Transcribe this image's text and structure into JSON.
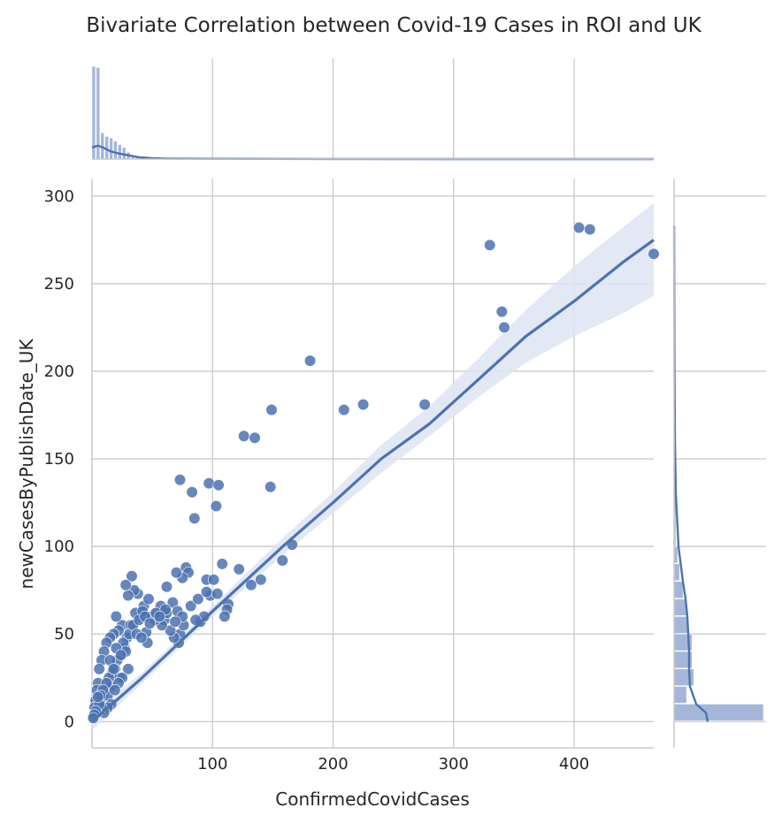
{
  "chart_data": {
    "type": "scatter",
    "title": "Bivariate Correlation between Covid-19 Cases in ROI and UK",
    "xlabel": "ConfirmedCovidCases",
    "ylabel": "newCasesByPublishDate_UK",
    "xlim": [
      0,
      466
    ],
    "ylim": [
      -15,
      310
    ],
    "xticks": [
      "100",
      "200",
      "300",
      "400"
    ],
    "xtick_values": [
      100,
      200,
      300,
      400
    ],
    "yticks": [
      "0",
      "50",
      "100",
      "150",
      "200",
      "250",
      "300"
    ],
    "ytick_values": [
      0,
      50,
      100,
      150,
      200,
      250,
      300
    ],
    "grid": true,
    "point_color": "#4c72b0",
    "band_color": "#dde4f2",
    "hist_color": "#a4b6d9",
    "scatter": {
      "x": [
        466,
        413,
        404,
        330,
        340,
        342,
        181,
        209,
        225,
        276,
        149,
        126,
        135,
        148,
        73,
        83,
        97,
        105,
        103,
        85,
        166,
        158,
        140,
        132,
        122,
        113,
        112,
        110,
        98,
        104,
        95,
        108,
        78,
        80,
        75,
        70,
        90,
        93,
        101,
        86,
        73,
        72,
        68,
        76,
        60,
        65,
        55,
        58,
        50,
        45,
        43,
        40,
        38,
        35,
        33,
        30,
        28,
        25,
        22,
        20,
        18,
        15,
        12,
        10,
        8,
        6,
        5,
        4,
        3,
        2,
        1,
        36,
        32,
        29,
        27,
        24,
        21,
        19,
        17,
        14,
        11,
        9,
        7,
        26,
        31,
        34,
        37,
        42,
        47,
        52,
        57,
        62,
        23,
        16,
        13,
        39,
        44,
        48,
        53,
        28,
        30,
        25,
        22,
        19,
        16,
        13,
        10,
        8,
        6,
        4,
        15,
        20,
        24,
        18,
        12,
        9,
        7,
        5,
        3,
        2,
        1,
        62,
        67,
        71,
        82,
        88,
        95,
        75,
        69,
        61,
        56,
        46,
        41
      ],
      "y": [
        267,
        281,
        282,
        272,
        234,
        225,
        206,
        178,
        181,
        181,
        178,
        163,
        162,
        134,
        138,
        131,
        136,
        135,
        123,
        116,
        101,
        92,
        81,
        78,
        87,
        67,
        64,
        60,
        72,
        73,
        81,
        90,
        88,
        85,
        82,
        85,
        57,
        60,
        81,
        58,
        50,
        45,
        48,
        55,
        58,
        52,
        62,
        55,
        60,
        51,
        66,
        60,
        73,
        75,
        83,
        72,
        78,
        55,
        52,
        60,
        50,
        48,
        45,
        40,
        35,
        30,
        22,
        18,
        12,
        8,
        3,
        62,
        55,
        48,
        42,
        38,
        35,
        30,
        28,
        25,
        18,
        15,
        12,
        45,
        50,
        55,
        50,
        63,
        70,
        58,
        66,
        62,
        25,
        20,
        15,
        58,
        60,
        56,
        62,
        40,
        30,
        25,
        22,
        18,
        10,
        8,
        5,
        8,
        10,
        5,
        35,
        42,
        38,
        30,
        22,
        18,
        15,
        14,
        6,
        4,
        2,
        77,
        68,
        63,
        66,
        70,
        74,
        60,
        57,
        64,
        60,
        45,
        48
      ]
    },
    "fit": {
      "x": [
        0,
        20,
        40,
        60,
        80,
        100,
        130,
        160,
        200,
        240,
        280,
        320,
        360,
        400,
        440,
        466
      ],
      "y": [
        0,
        12,
        24,
        37,
        50,
        63,
        82,
        101,
        125,
        150,
        170,
        195,
        220,
        240,
        262,
        275
      ],
      "band_lower": [
        -5,
        8,
        21,
        34,
        47,
        60,
        78,
        96,
        119,
        142,
        163,
        185,
        205,
        220,
        233,
        243
      ],
      "band_upper": [
        5,
        16,
        27,
        40,
        53,
        66,
        86,
        106,
        131,
        158,
        180,
        207,
        235,
        260,
        282,
        296
      ]
    },
    "marginal_x": {
      "bin_width": 3.6,
      "counts": [
        300,
        296,
        85,
        73,
        68,
        58,
        47,
        38,
        22,
        10,
        6,
        4,
        5,
        3,
        2,
        3,
        2,
        2,
        3,
        1,
        2,
        1,
        1,
        1,
        2,
        1,
        0,
        1,
        0,
        0
      ],
      "kde_x": [
        0,
        5,
        10,
        15,
        20,
        30,
        40,
        50,
        60,
        80,
        100,
        150,
        200,
        300,
        466
      ],
      "kde_y": [
        130,
        150,
        125,
        90,
        70,
        42,
        20,
        10,
        6,
        4,
        3,
        1.5,
        1,
        0.4,
        0.1
      ]
    },
    "marginal_y": {
      "bins": [
        [
          0,
          10,
          100
        ],
        [
          10,
          20,
          14
        ],
        [
          20,
          30,
          22
        ],
        [
          30,
          40,
          20
        ],
        [
          40,
          50,
          20
        ],
        [
          50,
          60,
          16
        ],
        [
          60,
          70,
          14
        ],
        [
          70,
          80,
          10
        ],
        [
          80,
          90,
          6
        ],
        [
          90,
          100,
          4
        ],
        [
          100,
          140,
          2
        ]
      ],
      "kde_y": [
        0,
        5,
        10,
        20,
        30,
        40,
        50,
        60,
        70,
        80,
        100,
        130,
        160,
        200,
        250,
        283
      ],
      "kde_x": [
        38,
        36,
        25,
        18,
        17,
        17,
        16,
        15,
        13,
        10,
        5,
        2,
        1,
        0.5,
        0.2,
        0.1
      ]
    }
  }
}
